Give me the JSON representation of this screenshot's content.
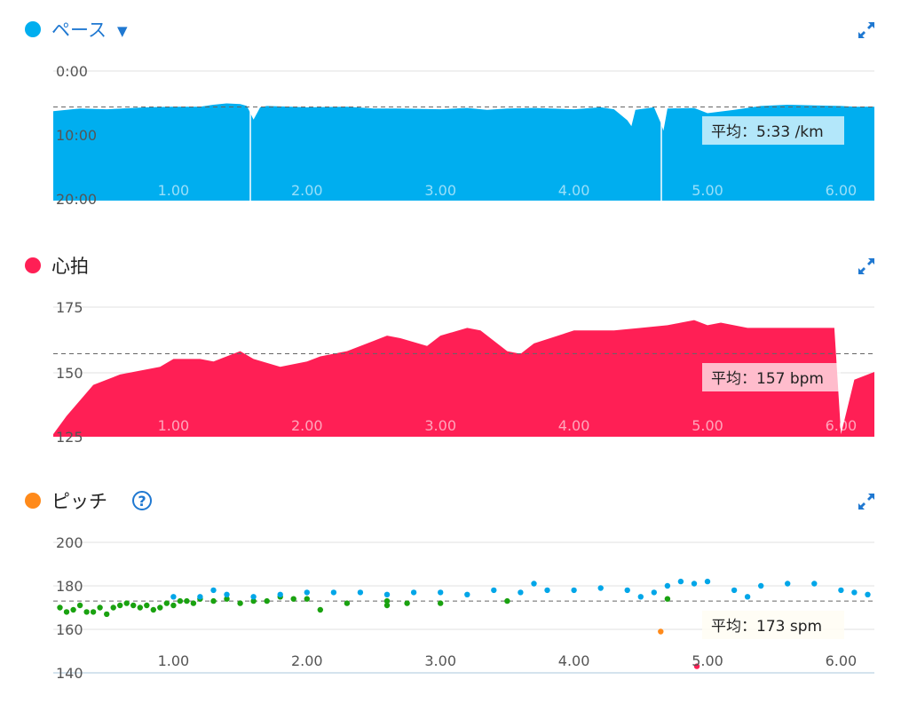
{
  "icons": {
    "expand": "expand-arrows-icon",
    "help": "question-circle-icon",
    "dropdown": "caret-down-icon"
  },
  "pace": {
    "title": "ペース",
    "color": "#00aeef",
    "avg_label": "平均：5:33 /km",
    "y_ticks": [
      "0:00",
      "10:00",
      "20:00"
    ],
    "x_ticks": [
      "1.00",
      "2.00",
      "3.00",
      "4.00",
      "5.00",
      "6.00"
    ]
  },
  "hr": {
    "title": "心拍",
    "color": "#ff1f55",
    "avg_label": "平均：157 bpm",
    "y_ticks": [
      "175",
      "150",
      "125"
    ],
    "x_ticks": [
      "1.00",
      "2.00",
      "3.00",
      "4.00",
      "5.00",
      "6.00"
    ]
  },
  "cadence": {
    "title": "ピッチ",
    "color": "#ff8a1a",
    "avg_label": "平均：173 spm",
    "y_ticks": [
      "200",
      "180",
      "160",
      "140"
    ],
    "x_ticks": [
      "1.00",
      "2.00",
      "3.00",
      "4.00",
      "5.00",
      "6.00"
    ]
  },
  "chart_data": [
    {
      "type": "area",
      "ylabel": "",
      "y_axis_reversed": true,
      "ylim": [
        0,
        20
      ],
      "xlim": [
        0.1,
        6.25
      ],
      "average_line": 5.55,
      "x": [
        0.1,
        0.3,
        0.5,
        0.8,
        1.0,
        1.2,
        1.3,
        1.4,
        1.5,
        1.55,
        1.6,
        1.65,
        1.7,
        2.0,
        2.3,
        2.5,
        2.7,
        3.0,
        3.2,
        3.35,
        3.5,
        3.7,
        4.0,
        4.2,
        4.3,
        4.4,
        4.43,
        4.46,
        4.6,
        4.65,
        4.67,
        4.7,
        4.9,
        5.0,
        5.2,
        5.4,
        5.6,
        5.8,
        6.0,
        6.1,
        6.25
      ],
      "values": [
        6.2,
        5.8,
        5.9,
        5.6,
        5.5,
        5.5,
        5.2,
        5.0,
        5.1,
        5.4,
        7.5,
        5.6,
        5.4,
        5.6,
        5.5,
        5.8,
        5.8,
        5.9,
        5.7,
        6.0,
        5.8,
        5.7,
        5.9,
        5.6,
        5.9,
        7.6,
        8.5,
        6.0,
        5.6,
        8.0,
        9.2,
        5.8,
        5.7,
        6.5,
        6.0,
        5.4,
        5.2,
        5.3,
        5.4,
        5.5,
        5.5
      ]
    },
    {
      "type": "area",
      "ylabel": "",
      "ylim": [
        125,
        175
      ],
      "xlim": [
        0.1,
        6.25
      ],
      "average_line": 157,
      "x": [
        0.1,
        0.2,
        0.4,
        0.6,
        0.8,
        0.9,
        1.0,
        1.2,
        1.3,
        1.5,
        1.6,
        1.8,
        1.9,
        2.0,
        2.1,
        2.3,
        2.5,
        2.6,
        2.7,
        2.9,
        3.0,
        3.2,
        3.3,
        3.5,
        3.6,
        3.7,
        4.0,
        4.3,
        4.5,
        4.7,
        4.8,
        4.9,
        5.0,
        5.1,
        5.3,
        5.5,
        5.7,
        5.9,
        5.95,
        6.0,
        6.1,
        6.25
      ],
      "values": [
        126,
        133,
        145,
        149,
        151,
        152,
        155,
        155,
        154,
        158,
        155,
        152,
        153,
        154,
        156,
        158,
        162,
        164,
        163,
        160,
        164,
        167,
        166,
        158,
        157,
        161,
        166,
        166,
        167,
        168,
        169,
        170,
        168,
        169,
        167,
        167,
        167,
        167,
        167,
        126,
        147,
        150
      ]
    },
    {
      "type": "scatter",
      "ylabel": "",
      "ylim": [
        140,
        200
      ],
      "xlim": [
        0.1,
        6.25
      ],
      "average_line": 173,
      "series": [
        {
          "color": "#1aa210",
          "x": [
            0.15,
            0.2,
            0.25,
            0.3,
            0.35,
            0.4,
            0.45,
            0.5,
            0.55,
            0.6,
            0.65,
            0.7,
            0.75,
            0.8,
            0.85,
            0.9,
            0.95,
            1.0,
            1.05,
            1.1,
            1.15,
            1.2,
            1.3,
            1.4,
            1.5,
            1.6,
            1.7,
            1.8,
            1.9,
            2.0,
            2.1,
            2.3,
            2.6,
            2.6,
            2.75,
            3.0,
            3.5,
            4.7
          ],
          "values": [
            170,
            168,
            169,
            171,
            168,
            168,
            170,
            167,
            170,
            171,
            172,
            171,
            170,
            171,
            169,
            170,
            172,
            171,
            173,
            173,
            172,
            174,
            173,
            174,
            172,
            173,
            173,
            175,
            174,
            174,
            169,
            172,
            171,
            173,
            172,
            172,
            173,
            174
          ]
        },
        {
          "color": "#00a6e8",
          "x": [
            1.0,
            1.2,
            1.3,
            1.4,
            1.6,
            1.8,
            2.0,
            2.2,
            2.4,
            2.6,
            2.8,
            3.0,
            3.2,
            3.4,
            3.6,
            3.7,
            3.8,
            4.0,
            4.2,
            4.4,
            4.5,
            4.6,
            4.7,
            4.8,
            4.9,
            5.0,
            5.2,
            5.3,
            5.4,
            5.6,
            5.8,
            6.0,
            6.1,
            6.2
          ],
          "values": [
            175,
            175,
            178,
            176,
            175,
            176,
            177,
            177,
            177,
            176,
            177,
            177,
            176,
            178,
            177,
            181,
            178,
            178,
            179,
            178,
            175,
            177,
            180,
            182,
            181,
            182,
            178,
            175,
            180,
            181,
            181,
            178,
            177,
            176
          ]
        },
        {
          "color": "#ff8a1a",
          "x": [
            4.65
          ],
          "values": [
            159
          ]
        },
        {
          "color": "#ff1f55",
          "x": [
            4.92
          ],
          "values": [
            143
          ]
        }
      ]
    }
  ]
}
